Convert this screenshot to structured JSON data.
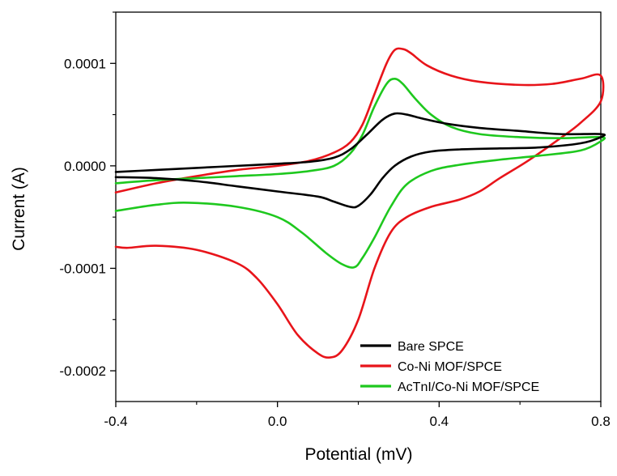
{
  "chart_data": {
    "type": "line",
    "title": "",
    "xlabel": "Potential (mV)",
    "ylabel": "Current (A)",
    "xlim": [
      -0.4,
      0.8
    ],
    "ylim": [
      -0.00023,
      0.00015
    ],
    "x_ticks": [
      -0.4,
      0.0,
      0.4,
      0.8
    ],
    "x_tick_labels": [
      "-0.4",
      "0.0",
      "0.4",
      "0.8"
    ],
    "y_ticks": [
      0.0001,
      0.0,
      -0.0001,
      -0.0002
    ],
    "y_tick_labels": [
      "0.0001",
      "0.0000",
      "-0.0001",
      "-0.0002"
    ],
    "grid": false,
    "legend_position": "bottom-right",
    "series": [
      {
        "name": "Bare SPCE",
        "color": "#000000",
        "points": [
          [
            -0.4,
            -6e-06
          ],
          [
            -0.3,
            -4e-06
          ],
          [
            -0.2,
            -2e-06
          ],
          [
            -0.1,
            0.0
          ],
          [
            0.0,
            2e-06
          ],
          [
            0.08,
            4e-06
          ],
          [
            0.14,
            8e-06
          ],
          [
            0.18,
            1.6e-05
          ],
          [
            0.22,
            3e-05
          ],
          [
            0.26,
            4.5e-05
          ],
          [
            0.29,
            5.1e-05
          ],
          [
            0.32,
            5e-05
          ],
          [
            0.36,
            4.6e-05
          ],
          [
            0.42,
            4.1e-05
          ],
          [
            0.5,
            3.7e-05
          ],
          [
            0.6,
            3.4e-05
          ],
          [
            0.7,
            3.1e-05
          ],
          [
            0.8,
            3.1e-05
          ],
          [
            0.8,
            2.8e-05
          ],
          [
            0.75,
            2.2e-05
          ],
          [
            0.65,
            1.8e-05
          ],
          [
            0.55,
            1.7e-05
          ],
          [
            0.45,
            1.6e-05
          ],
          [
            0.38,
            1.4e-05
          ],
          [
            0.33,
            9e-06
          ],
          [
            0.29,
            0.0
          ],
          [
            0.26,
            -1.2e-05
          ],
          [
            0.23,
            -2.8e-05
          ],
          [
            0.2,
            -3.9e-05
          ],
          [
            0.18,
            -4e-05
          ],
          [
            0.14,
            -3.5e-05
          ],
          [
            0.1,
            -3e-05
          ],
          [
            0.0,
            -2.5e-05
          ],
          [
            -0.1,
            -2e-05
          ],
          [
            -0.2,
            -1.5e-05
          ],
          [
            -0.3,
            -1.2e-05
          ],
          [
            -0.4,
            -1.1e-05
          ]
        ]
      },
      {
        "name": "Co-Ni MOF/SPCE",
        "color": "#e8141a",
        "points": [
          [
            -0.4,
            -2.6e-05
          ],
          [
            -0.3,
            -1.7e-05
          ],
          [
            -0.2,
            -1e-05
          ],
          [
            -0.1,
            -4e-06
          ],
          [
            0.0,
            0.0
          ],
          [
            0.08,
            5e-06
          ],
          [
            0.14,
            1.3e-05
          ],
          [
            0.18,
            2.3e-05
          ],
          [
            0.21,
            4e-05
          ],
          [
            0.24,
            7e-05
          ],
          [
            0.27,
            0.0001
          ],
          [
            0.29,
            0.000113
          ],
          [
            0.31,
            0.000114
          ],
          [
            0.33,
            0.00011
          ],
          [
            0.37,
            9.8e-05
          ],
          [
            0.43,
            8.8e-05
          ],
          [
            0.5,
            8.2e-05
          ],
          [
            0.6,
            7.9e-05
          ],
          [
            0.68,
            8e-05
          ],
          [
            0.75,
            8.5e-05
          ],
          [
            0.8,
            8.8e-05
          ],
          [
            0.8,
            6.3e-05
          ],
          [
            0.75,
            4.2e-05
          ],
          [
            0.7,
            2.7e-05
          ],
          [
            0.62,
            5e-06
          ],
          [
            0.55,
            -1.2e-05
          ],
          [
            0.5,
            -2.5e-05
          ],
          [
            0.45,
            -3.3e-05
          ],
          [
            0.38,
            -4e-05
          ],
          [
            0.32,
            -5e-05
          ],
          [
            0.28,
            -6.5e-05
          ],
          [
            0.24,
            -0.0001
          ],
          [
            0.2,
            -0.00015
          ],
          [
            0.16,
            -0.00018
          ],
          [
            0.13,
            -0.000187
          ],
          [
            0.1,
            -0.000183
          ],
          [
            0.05,
            -0.000165
          ],
          [
            0.0,
            -0.000135
          ],
          [
            -0.05,
            -0.00011
          ],
          [
            -0.1,
            -9.5e-05
          ],
          [
            -0.2,
            -8.2e-05
          ],
          [
            -0.3,
            -7.8e-05
          ],
          [
            -0.37,
            -8e-05
          ],
          [
            -0.4,
            -7.9e-05
          ]
        ]
      },
      {
        "name": "AcTnI/Co-Ni MOF/SPCE",
        "color": "#1ec81e",
        "points": [
          [
            -0.4,
            -1.7e-05
          ],
          [
            -0.3,
            -1.4e-05
          ],
          [
            -0.2,
            -1.2e-05
          ],
          [
            -0.1,
            -1e-05
          ],
          [
            0.0,
            -8e-06
          ],
          [
            0.08,
            -5e-06
          ],
          [
            0.14,
            0.0
          ],
          [
            0.18,
            1.2e-05
          ],
          [
            0.21,
            3e-05
          ],
          [
            0.24,
            5.8e-05
          ],
          [
            0.27,
            8e-05
          ],
          [
            0.29,
            8.5e-05
          ],
          [
            0.31,
            8e-05
          ],
          [
            0.34,
            6.6e-05
          ],
          [
            0.38,
            5e-05
          ],
          [
            0.43,
            3.8e-05
          ],
          [
            0.5,
            3.1e-05
          ],
          [
            0.6,
            2.8e-05
          ],
          [
            0.7,
            2.7e-05
          ],
          [
            0.8,
            2.8e-05
          ],
          [
            0.8,
            2.4e-05
          ],
          [
            0.75,
            1.5e-05
          ],
          [
            0.65,
            1e-05
          ],
          [
            0.55,
            6e-06
          ],
          [
            0.45,
            1e-06
          ],
          [
            0.38,
            -5e-06
          ],
          [
            0.32,
            -1.8e-05
          ],
          [
            0.28,
            -4e-05
          ],
          [
            0.24,
            -7e-05
          ],
          [
            0.21,
            -9e-05
          ],
          [
            0.19,
            -9.9e-05
          ],
          [
            0.16,
            -9.6e-05
          ],
          [
            0.12,
            -8.5e-05
          ],
          [
            0.06,
            -6.5e-05
          ],
          [
            0.0,
            -5e-05
          ],
          [
            -0.1,
            -4e-05
          ],
          [
            -0.22,
            -3.6e-05
          ],
          [
            -0.3,
            -3.8e-05
          ],
          [
            -0.4,
            -4.4e-05
          ]
        ]
      }
    ]
  }
}
